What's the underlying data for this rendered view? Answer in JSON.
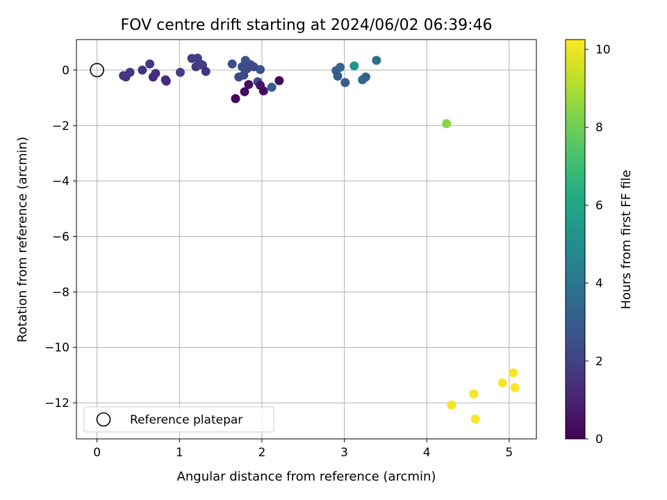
{
  "chart_data": {
    "type": "scatter",
    "title": "FOV centre drift starting at 2024/06/02 06:39:46",
    "xlabel": "Angular distance from reference (arcmin)",
    "ylabel": "Rotation from reference (arcmin)",
    "xlim": [
      -0.25,
      5.33
    ],
    "ylim": [
      -13.3,
      1.1
    ],
    "xticks": [
      0,
      1,
      2,
      3,
      4,
      5
    ],
    "xtick_labels": [
      "0",
      "1",
      "2",
      "3",
      "4",
      "5"
    ],
    "yticks": [
      0,
      -2,
      -4,
      -6,
      -8,
      -10,
      -12
    ],
    "ytick_labels": [
      "0",
      "−2",
      "−4",
      "−6",
      "−8",
      "−10",
      "−12"
    ],
    "grid": true,
    "legend": {
      "position": "lower-left",
      "entries": [
        "Reference platepar"
      ]
    },
    "reference_point": {
      "x": 0,
      "y": 0,
      "marker": "open-circle",
      "color": "#000000"
    },
    "colorbar": {
      "label": "Hours from first FF file",
      "range": [
        0,
        10.25
      ],
      "ticks": [
        0,
        2,
        4,
        6,
        8,
        10
      ],
      "tick_labels": [
        "0",
        "2",
        "4",
        "6",
        "8",
        "10"
      ],
      "colormap": "viridis"
    },
    "points": [
      {
        "x": 0.32,
        "y": -0.2,
        "c": 1.6
      },
      {
        "x": 0.35,
        "y": -0.25,
        "c": 1.5
      },
      {
        "x": 0.4,
        "y": -0.08,
        "c": 1.7
      },
      {
        "x": 0.55,
        "y": 0.0,
        "c": 1.5
      },
      {
        "x": 0.64,
        "y": 0.22,
        "c": 1.6
      },
      {
        "x": 0.68,
        "y": -0.25,
        "c": 1.2
      },
      {
        "x": 0.71,
        "y": -0.12,
        "c": 1.4
      },
      {
        "x": 0.83,
        "y": -0.35,
        "c": 1.5
      },
      {
        "x": 0.84,
        "y": -0.4,
        "c": 1.3
      },
      {
        "x": 1.01,
        "y": -0.08,
        "c": 1.9
      },
      {
        "x": 1.15,
        "y": 0.42,
        "c": 1.8
      },
      {
        "x": 1.2,
        "y": 0.12,
        "c": 1.7
      },
      {
        "x": 1.22,
        "y": 0.43,
        "c": 1.9
      },
      {
        "x": 1.25,
        "y": 0.22,
        "c": 1.8
      },
      {
        "x": 1.28,
        "y": 0.18,
        "c": 1.9
      },
      {
        "x": 1.32,
        "y": -0.05,
        "c": 1.6
      },
      {
        "x": 1.64,
        "y": 0.22,
        "c": 2.5
      },
      {
        "x": 1.68,
        "y": -1.03,
        "c": 0.1
      },
      {
        "x": 1.72,
        "y": -0.25,
        "c": 2.2
      },
      {
        "x": 1.76,
        "y": 0.12,
        "c": 2.4
      },
      {
        "x": 1.78,
        "y": -0.18,
        "c": 2.3
      },
      {
        "x": 1.79,
        "y": -0.78,
        "c": 0.3
      },
      {
        "x": 1.8,
        "y": 0.35,
        "c": 2.5
      },
      {
        "x": 1.82,
        "y": 0.05,
        "c": 2.4
      },
      {
        "x": 1.84,
        "y": -0.52,
        "c": 0.4
      },
      {
        "x": 1.86,
        "y": 0.2,
        "c": 2.3
      },
      {
        "x": 1.9,
        "y": 0.12,
        "c": 2.2
      },
      {
        "x": 1.95,
        "y": -0.42,
        "c": 2.4
      },
      {
        "x": 1.98,
        "y": -0.55,
        "c": 0.5
      },
      {
        "x": 1.98,
        "y": 0.02,
        "c": 2.6
      },
      {
        "x": 2.02,
        "y": -0.75,
        "c": 0.3
      },
      {
        "x": 2.12,
        "y": -0.62,
        "c": 3.0
      },
      {
        "x": 2.21,
        "y": -0.38,
        "c": 0.2
      },
      {
        "x": 2.9,
        "y": -0.02,
        "c": 3.2
      },
      {
        "x": 2.92,
        "y": -0.22,
        "c": 3.0
      },
      {
        "x": 2.95,
        "y": 0.1,
        "c": 3.3
      },
      {
        "x": 3.01,
        "y": -0.45,
        "c": 3.0
      },
      {
        "x": 3.12,
        "y": 0.15,
        "c": 5.3
      },
      {
        "x": 3.22,
        "y": -0.35,
        "c": 3.6
      },
      {
        "x": 3.26,
        "y": -0.25,
        "c": 3.2
      },
      {
        "x": 3.39,
        "y": 0.35,
        "c": 3.8
      },
      {
        "x": 4.24,
        "y": -1.93,
        "c": 8.4
      },
      {
        "x": 4.3,
        "y": -12.08,
        "c": 10.1
      },
      {
        "x": 4.57,
        "y": -11.68,
        "c": 10.1
      },
      {
        "x": 4.59,
        "y": -12.58,
        "c": 10.2
      },
      {
        "x": 4.92,
        "y": -11.28,
        "c": 10.1
      },
      {
        "x": 5.05,
        "y": -10.92,
        "c": 10.1
      },
      {
        "x": 5.07,
        "y": -11.45,
        "c": 10.2
      }
    ]
  }
}
